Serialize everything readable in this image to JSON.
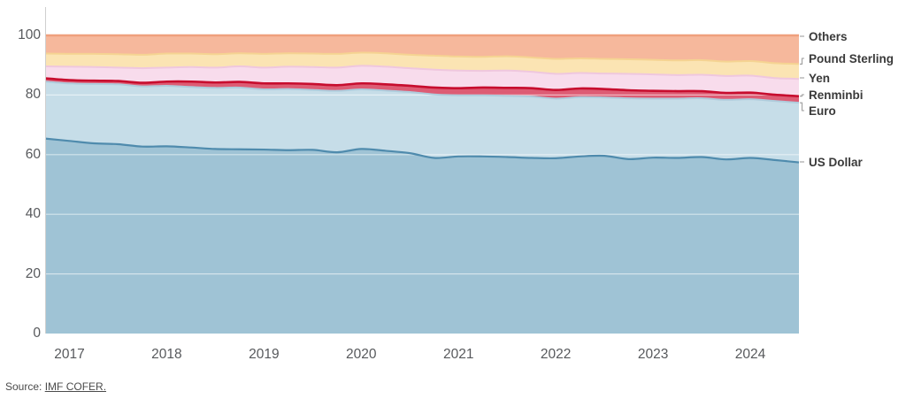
{
  "chart_data": {
    "type": "area",
    "stacked": true,
    "title": "",
    "unit": "%",
    "ylim": [
      0,
      100
    ],
    "y_ticks": [
      100,
      80,
      60,
      40,
      20,
      0
    ],
    "x_tick_labels": [
      "2017",
      "2018",
      "2019",
      "2020",
      "2021",
      "2022",
      "2023",
      "2024"
    ],
    "grid": "horizontal",
    "legend_position": "right",
    "legend_order_top_to_bottom": [
      "Others",
      "Pound Sterling",
      "Yen",
      "Renminbi",
      "Euro",
      "US Dollar"
    ],
    "quarters": [
      "2016 Q4",
      "2017 Q1",
      "2017 Q2",
      "2017 Q3",
      "2017 Q4",
      "2018 Q1",
      "2018 Q2",
      "2018 Q3",
      "2018 Q4",
      "2019 Q1",
      "2019 Q2",
      "2019 Q3",
      "2019 Q4",
      "2020 Q1",
      "2020 Q2",
      "2020 Q3",
      "2020 Q4",
      "2021 Q1",
      "2021 Q2",
      "2021 Q3",
      "2021 Q4",
      "2022 Q1",
      "2022 Q2",
      "2022 Q3",
      "2022 Q4",
      "2023 Q1",
      "2023 Q2",
      "2023 Q3",
      "2023 Q4",
      "2024 Q1",
      "2024 Q2",
      "2024 Q3"
    ],
    "series": [
      {
        "name": "US Dollar",
        "fill": "#9fc3d5",
        "line": "#4f8bad",
        "line_width": 2.2,
        "values": [
          65.4,
          64.6,
          63.8,
          63.5,
          62.7,
          62.8,
          62.4,
          61.9,
          61.8,
          61.7,
          61.5,
          61.6,
          60.8,
          61.9,
          61.3,
          60.5,
          58.9,
          59.4,
          59.4,
          59.2,
          58.9,
          58.8,
          59.4,
          59.6,
          58.5,
          59.0,
          58.9,
          59.2,
          58.4,
          58.9,
          58.2,
          57.4
        ]
      },
      {
        "name": "Euro",
        "fill": "#c6dde8",
        "line": "#afccdc",
        "line_width": 2.0,
        "values": [
          19.1,
          19.3,
          19.9,
          20.1,
          20.2,
          20.3,
          20.3,
          20.5,
          20.7,
          20.2,
          20.5,
          20.1,
          20.6,
          20.0,
          20.2,
          20.5,
          21.3,
          20.5,
          20.5,
          20.5,
          20.6,
          20.0,
          19.9,
          19.6,
          20.4,
          19.8,
          19.9,
          19.7,
          20.0,
          19.7,
          19.8,
          20.0
        ]
      },
      {
        "name": "Renminbi",
        "fill": "#dd5c74",
        "line": "#c70d2e",
        "line_width": 2.6,
        "values": [
          1.1,
          1.1,
          1.1,
          1.1,
          1.2,
          1.4,
          1.8,
          1.8,
          1.9,
          2.0,
          1.9,
          2.0,
          1.9,
          2.0,
          2.1,
          2.1,
          2.3,
          2.4,
          2.6,
          2.7,
          2.8,
          2.9,
          2.9,
          2.8,
          2.7,
          2.6,
          2.5,
          2.4,
          2.3,
          2.2,
          2.1,
          2.2
        ]
      },
      {
        "name": "Yen",
        "fill": "#f8dcec",
        "line": "#efc7de",
        "line_width": 2.0,
        "values": [
          4.0,
          4.5,
          4.6,
          4.5,
          4.9,
          4.7,
          4.9,
          5.0,
          5.2,
          5.3,
          5.6,
          5.7,
          5.9,
          5.9,
          5.9,
          5.9,
          6.0,
          5.9,
          5.6,
          5.8,
          5.5,
          5.4,
          5.2,
          5.2,
          5.5,
          5.5,
          5.4,
          5.5,
          5.7,
          5.7,
          5.6,
          5.8
        ]
      },
      {
        "name": "Pound Sterling",
        "fill": "#fbe4b3",
        "line": "#f5d392",
        "line_width": 2.0,
        "values": [
          4.3,
          4.3,
          4.4,
          4.5,
          4.5,
          4.7,
          4.5,
          4.5,
          4.4,
          4.6,
          4.5,
          4.5,
          4.6,
          4.4,
          4.5,
          4.5,
          4.7,
          4.7,
          4.7,
          4.8,
          4.8,
          5.0,
          4.9,
          4.9,
          4.9,
          4.9,
          4.9,
          4.9,
          4.8,
          4.9,
          5.0,
          5.0
        ]
      },
      {
        "name": "Others",
        "fill": "#f6b89c",
        "line": "#efa07d",
        "line_width": 2.4,
        "values": [
          6.1,
          6.2,
          6.2,
          6.3,
          6.5,
          6.1,
          6.1,
          6.3,
          6.0,
          6.2,
          6.0,
          6.1,
          6.2,
          5.8,
          6.0,
          6.5,
          6.8,
          7.1,
          7.2,
          7.0,
          7.4,
          7.9,
          7.7,
          7.9,
          8.0,
          8.2,
          8.4,
          8.3,
          8.8,
          8.6,
          9.3,
          9.6
        ]
      }
    ],
    "gridline_color": "rgba(255,255,255,0.55)",
    "axis_line_color": "#cfcfcf",
    "leader_color": "#9e9e9e"
  },
  "source": {
    "prefix": "Source: ",
    "link_text": "IMF COFER."
  }
}
